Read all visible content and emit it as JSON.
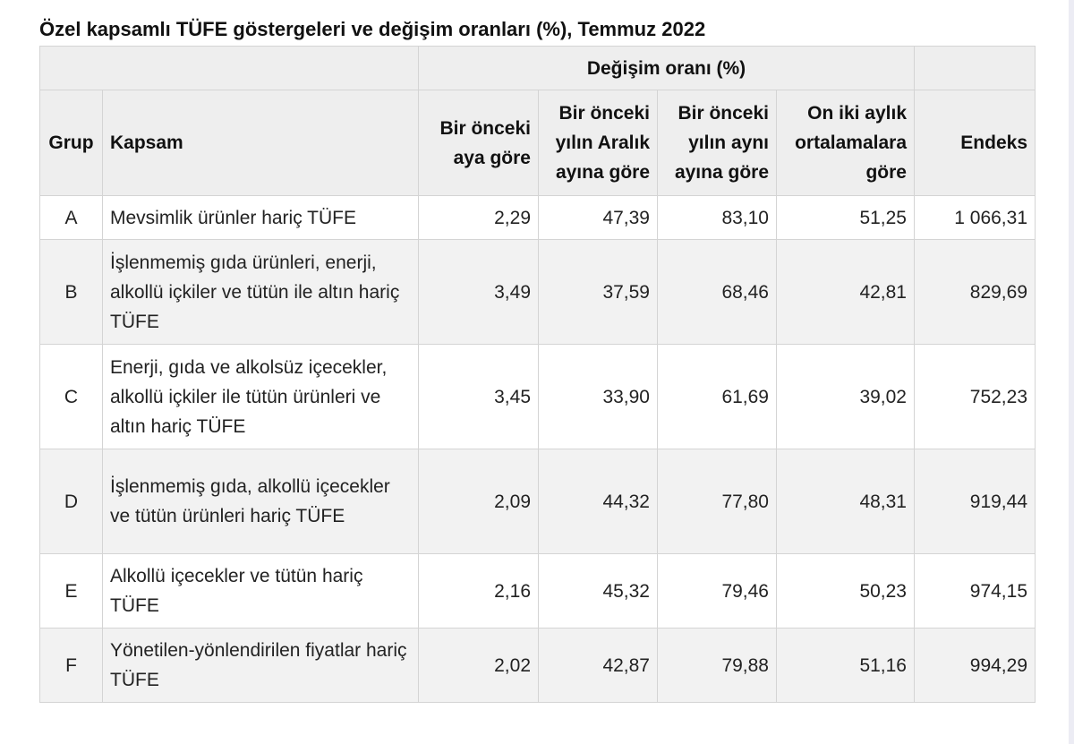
{
  "title": "Özel kapsamlı TÜFE göstergeleri ve değişim oranları (%), Temmuz 2022",
  "header": {
    "change_group": "Değişim oranı (%)",
    "grup": "Grup",
    "kapsam": "Kapsam",
    "col_monthly": "Bir önceki aya göre",
    "col_december": "Bir önceki yılın Aralık ayına göre",
    "col_annual": "Bir önceki yılın aynı ayına göre",
    "col_twelve_month": "On iki aylık ortalamalara göre",
    "col_index": "Endeks"
  },
  "rows": [
    {
      "grup": "A",
      "kapsam": "Mevsimlik ürünler hariç TÜFE",
      "monthly": "2,29",
      "december": "47,39",
      "annual": "83,10",
      "twelve_month": "51,25",
      "index": "1 066,31"
    },
    {
      "grup": "B",
      "kapsam": "İşlenmemiş gıda ürünleri, enerji, alkollü içkiler ve tütün ile altın hariç TÜFE",
      "monthly": "3,49",
      "december": "37,59",
      "annual": "68,46",
      "twelve_month": "42,81",
      "index": "829,69"
    },
    {
      "grup": "C",
      "kapsam": "Enerji, gıda ve alkolsüz içecekler, alkollü içkiler ile tütün ürünleri ve altın hariç TÜFE",
      "monthly": "3,45",
      "december": "33,90",
      "annual": "61,69",
      "twelve_month": "39,02",
      "index": "752,23"
    },
    {
      "grup": "D",
      "kapsam": "İşlenmemiş gıda, alkollü içecekler ve tütün ürünleri hariç TÜFE",
      "monthly": "2,09",
      "december": "44,32",
      "annual": "77,80",
      "twelve_month": "48,31",
      "index": "919,44"
    },
    {
      "grup": "E",
      "kapsam": "Alkollü içecekler ve tütün hariç TÜFE",
      "monthly": "2,16",
      "december": "45,32",
      "annual": "79,46",
      "twelve_month": "50,23",
      "index": "974,15"
    },
    {
      "grup": "F",
      "kapsam": "Yönetilen-yönlendirilen fiyatlar hariç TÜFE",
      "monthly": "2,02",
      "december": "42,87",
      "annual": "79,88",
      "twelve_month": "51,16",
      "index": "994,29"
    }
  ]
}
